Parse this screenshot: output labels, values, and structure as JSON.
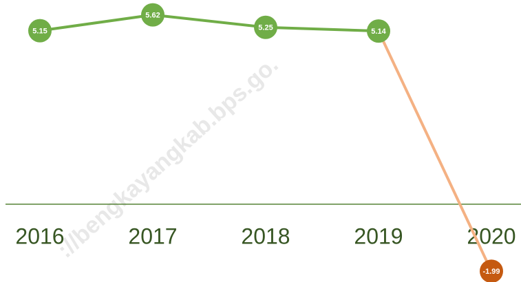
{
  "chart_data": {
    "type": "line",
    "categories": [
      "2016",
      "2017",
      "2018",
      "2019",
      "2020"
    ],
    "values": [
      5.15,
      5.62,
      5.25,
      5.14,
      -1.99
    ],
    "color": "#70ad47",
    "highlight": {
      "index": 4,
      "marker_color": "#c55a11",
      "line_color": "#f4b183"
    },
    "ylim": [
      -2.2,
      6.0
    ],
    "axis_color": "#548235",
    "label_color": "#375623",
    "watermark": "://bengkayangkab.bps.go."
  }
}
